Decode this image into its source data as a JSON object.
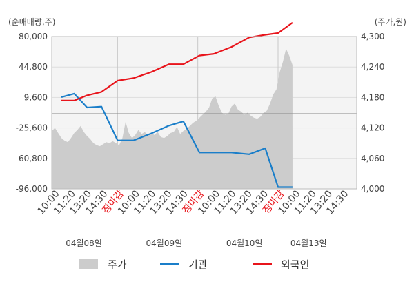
{
  "chart_data": {
    "type": "line",
    "y_left_unit": "(순매매량,주)",
    "y_right_unit": "(주가,원)",
    "y_left_ticks": [
      "80,000",
      "44,800",
      "9,600",
      "-25,600",
      "-60,800",
      "-96,000"
    ],
    "y_right_ticks": [
      "4,300",
      "4,240",
      "4,180",
      "4,120",
      "4,060",
      "4,000"
    ],
    "y_left_range": [
      -96000,
      80000
    ],
    "y_right_range": [
      4000,
      4300
    ],
    "x_tick_labels": [
      "10:00",
      "11:20",
      "13:20",
      "14:30",
      "장마감",
      "10:00",
      "11:20",
      "13:20",
      "14:30",
      "장마감",
      "10:00",
      "11:20",
      "13:20",
      "14:30",
      "장마감",
      "10:00",
      "11:20",
      "13:20",
      "14:30"
    ],
    "x_close_label": "장마감",
    "day_labels": [
      "04월08일",
      "04월09일",
      "04월10일",
      "04월13일"
    ],
    "zero_line": 4000,
    "legend": [
      "주가",
      "기관",
      "외국인"
    ],
    "colors": {
      "price": "#cccccc",
      "institution": "#1a7ec9",
      "foreign": "#e8141b",
      "grid": "#dddddd",
      "plot_bg": "#f4f4f4",
      "zero_line": "#888888"
    },
    "series": [
      {
        "name": "주가",
        "axis": "right",
        "values": [
          [
            0,
            4114
          ],
          [
            0.2,
            4120
          ],
          [
            0.4,
            4110
          ],
          [
            0.6,
            4100
          ],
          [
            0.8,
            4095
          ],
          [
            1,
            4092
          ],
          [
            1.2,
            4100
          ],
          [
            1.4,
            4110
          ],
          [
            1.6,
            4116
          ],
          [
            1.8,
            4124
          ],
          [
            2,
            4112
          ],
          [
            2.2,
            4104
          ],
          [
            2.4,
            4098
          ],
          [
            2.6,
            4090
          ],
          [
            2.8,
            4086
          ],
          [
            3,
            4084
          ],
          [
            3.2,
            4088
          ],
          [
            3.4,
            4092
          ],
          [
            3.6,
            4090
          ],
          [
            3.8,
            4094
          ],
          [
            4,
            4090
          ],
          [
            4.2,
            4086
          ],
          [
            4.4,
            4100
          ],
          [
            4.6,
            4132
          ],
          [
            4.8,
            4110
          ],
          [
            5,
            4100
          ],
          [
            5.2,
            4106
          ],
          [
            5.4,
            4116
          ],
          [
            5.6,
            4108
          ],
          [
            5.8,
            4112
          ],
          [
            6,
            4104
          ],
          [
            6.2,
            4110
          ],
          [
            6.4,
            4106
          ],
          [
            6.6,
            4112
          ],
          [
            6.8,
            4102
          ],
          [
            7,
            4100
          ],
          [
            7.2,
            4104
          ],
          [
            7.4,
            4110
          ],
          [
            7.6,
            4112
          ],
          [
            7.8,
            4122
          ],
          [
            8,
            4108
          ],
          [
            8.2,
            4114
          ],
          [
            8.4,
            4118
          ],
          [
            8.6,
            4124
          ],
          [
            8.8,
            4130
          ],
          [
            9,
            4134
          ],
          [
            9.2,
            4140
          ],
          [
            9.4,
            4146
          ],
          [
            9.6,
            4152
          ],
          [
            9.8,
            4160
          ],
          [
            10,
            4178
          ],
          [
            10.2,
            4182
          ],
          [
            10.4,
            4164
          ],
          [
            10.6,
            4150
          ],
          [
            10.8,
            4146
          ],
          [
            11,
            4148
          ],
          [
            11.2,
            4162
          ],
          [
            11.4,
            4168
          ],
          [
            11.6,
            4156
          ],
          [
            11.8,
            4152
          ],
          [
            12,
            4146
          ],
          [
            12.2,
            4150
          ],
          [
            12.4,
            4144
          ],
          [
            12.6,
            4140
          ],
          [
            12.8,
            4138
          ],
          [
            13,
            4142
          ],
          [
            13.2,
            4150
          ],
          [
            13.4,
            4154
          ],
          [
            13.6,
            4168
          ],
          [
            13.8,
            4186
          ],
          [
            14,
            4196
          ],
          [
            14.2,
            4230
          ],
          [
            14.4,
            4250
          ],
          [
            14.6,
            4276
          ],
          [
            14.8,
            4262
          ],
          [
            15,
            4244
          ]
        ]
      },
      {
        "name": "기관",
        "axis": "left",
        "values": [
          [
            0.6,
            10000
          ],
          [
            1.4,
            14000
          ],
          [
            2.2,
            -2000
          ],
          [
            3.1,
            -1000
          ],
          [
            4.1,
            -40000
          ],
          [
            5.1,
            -40000
          ],
          [
            6.2,
            -32000
          ],
          [
            7.3,
            -23000
          ],
          [
            8.2,
            -18000
          ],
          [
            9.2,
            -54000
          ],
          [
            10.1,
            -54000
          ],
          [
            11.2,
            -54000
          ],
          [
            12.3,
            -56000
          ],
          [
            13.3,
            -49000
          ],
          [
            14.1,
            -94000
          ],
          [
            15,
            -94000
          ]
        ]
      },
      {
        "name": "외국인",
        "axis": "left",
        "values": [
          [
            0.6,
            6000
          ],
          [
            1.4,
            6000
          ],
          [
            2.2,
            12000
          ],
          [
            3.1,
            16000
          ],
          [
            4.1,
            29000
          ],
          [
            5.1,
            32000
          ],
          [
            6.2,
            39000
          ],
          [
            7.3,
            48000
          ],
          [
            8.2,
            48000
          ],
          [
            9.2,
            58000
          ],
          [
            10.1,
            60000
          ],
          [
            11.2,
            68000
          ],
          [
            12.3,
            79000
          ],
          [
            13.3,
            82000
          ],
          [
            14.1,
            84000
          ],
          [
            15,
            96000
          ]
        ]
      }
    ]
  }
}
